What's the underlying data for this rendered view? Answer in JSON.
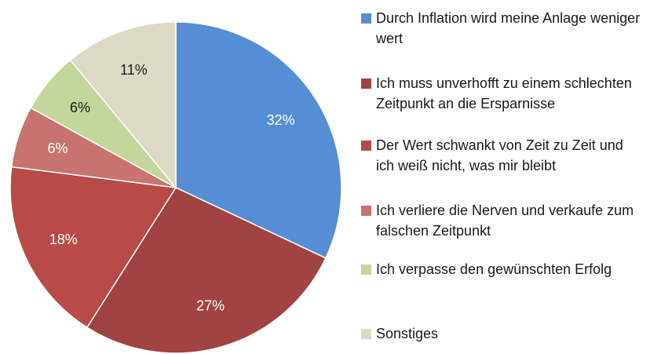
{
  "chart_data": {
    "type": "pie",
    "categories": [
      "Durch Inflation wird meine Anlage weniger wert",
      "Ich muss unverhofft zu einem schlechten Zeitpunkt an die Ersparnisse",
      "Der Wert schwankt von Zeit zu Zeit und ich weiß nicht, was mir bleibt",
      "Ich verliere die Nerven und verkaufe zum falschen Zeitpunkt",
      "Ich verpasse den gewünschten Erfolg",
      "Sonstiges"
    ],
    "values": [
      32,
      27,
      18,
      6,
      6,
      11
    ],
    "value_labels": [
      "32%",
      "27%",
      "18%",
      "6%",
      "6%",
      "11%"
    ],
    "colors": [
      "#558ed5",
      "#a04342",
      "#b94a48",
      "#c8736f",
      "#c3d69b",
      "#ddd9c4"
    ],
    "label_colors": [
      "#ffffff",
      "#ffffff",
      "#ffffff",
      "#ffffff",
      "#1a1a1a",
      "#1a1a1a"
    ],
    "legend": "right"
  }
}
